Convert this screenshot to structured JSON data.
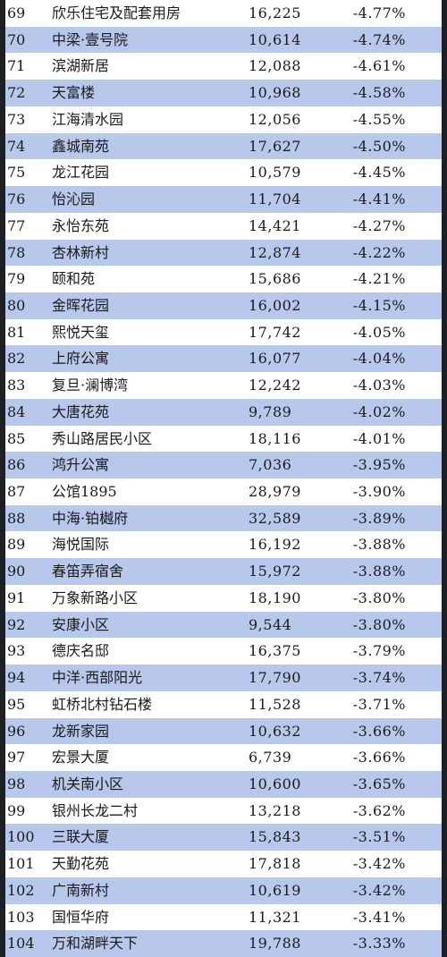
{
  "rows": [
    {
      "rank": "69",
      "name": "欣乐住宅及配套用房",
      "price": "16,225",
      "change": "-4.77%"
    },
    {
      "rank": "70",
      "name": "中梁·壹号院",
      "price": "10,614",
      "change": "-4.74%"
    },
    {
      "rank": "71",
      "name": "滨湖新居",
      "price": "12,088",
      "change": "-4.61%"
    },
    {
      "rank": "72",
      "name": "天富楼",
      "price": "10,968",
      "change": "-4.58%"
    },
    {
      "rank": "73",
      "name": "江海清水园",
      "price": "12,056",
      "change": "-4.55%"
    },
    {
      "rank": "74",
      "name": "鑫城南苑",
      "price": "17,627",
      "change": "-4.50%"
    },
    {
      "rank": "75",
      "name": "龙江花园",
      "price": "10,579",
      "change": "-4.45%"
    },
    {
      "rank": "76",
      "name": "怡沁园",
      "price": "11,704",
      "change": "-4.41%"
    },
    {
      "rank": "77",
      "name": "永怡东苑",
      "price": "14,421",
      "change": "-4.27%"
    },
    {
      "rank": "78",
      "name": "杏林新村",
      "price": "12,874",
      "change": "-4.22%"
    },
    {
      "rank": "79",
      "name": "颐和苑",
      "price": "15,686",
      "change": "-4.21%"
    },
    {
      "rank": "80",
      "name": "金晖花园",
      "price": "16,002",
      "change": "-4.15%"
    },
    {
      "rank": "81",
      "name": "熙悦天玺",
      "price": "17,742",
      "change": "-4.05%"
    },
    {
      "rank": "82",
      "name": "上府公寓",
      "price": "16,077",
      "change": "-4.04%"
    },
    {
      "rank": "83",
      "name": "复旦·澜博湾",
      "price": "12,242",
      "change": "-4.03%"
    },
    {
      "rank": "84",
      "name": "大唐花苑",
      "price": "9,789",
      "change": "-4.02%"
    },
    {
      "rank": "85",
      "name": "秀山路居民小区",
      "price": "18,116",
      "change": "-4.01%"
    },
    {
      "rank": "86",
      "name": "鸿升公寓",
      "price": "7,036",
      "change": "-3.95%"
    },
    {
      "rank": "87",
      "name": "公馆1895",
      "price": "28,979",
      "change": "-3.90%"
    },
    {
      "rank": "88",
      "name": "中海·铂樾府",
      "price": "32,589",
      "change": "-3.89%"
    },
    {
      "rank": "89",
      "name": "海悦国际",
      "price": "16,192",
      "change": "-3.88%"
    },
    {
      "rank": "90",
      "name": "春笛弄宿舍",
      "price": "15,972",
      "change": "-3.88%"
    },
    {
      "rank": "91",
      "name": "万象新路小区",
      "price": "18,190",
      "change": "-3.80%"
    },
    {
      "rank": "92",
      "name": "安康小区",
      "price": "9,544",
      "change": "-3.80%"
    },
    {
      "rank": "93",
      "name": "德庆名邸",
      "price": "16,375",
      "change": "-3.79%"
    },
    {
      "rank": "94",
      "name": "中洋·西部阳光",
      "price": "17,790",
      "change": "-3.74%"
    },
    {
      "rank": "95",
      "name": "虹桥北村钻石楼",
      "price": "11,528",
      "change": "-3.71%"
    },
    {
      "rank": "96",
      "name": "龙新家园",
      "price": "10,632",
      "change": "-3.66%"
    },
    {
      "rank": "97",
      "name": "宏景大厦",
      "price": "6,739",
      "change": "-3.66%"
    },
    {
      "rank": "98",
      "name": "机关南小区",
      "price": "10,600",
      "change": "-3.65%"
    },
    {
      "rank": "99",
      "name": "银州长龙二村",
      "price": "13,218",
      "change": "-3.62%"
    },
    {
      "rank": "100",
      "name": "三联大厦",
      "price": "15,843",
      "change": "-3.51%"
    },
    {
      "rank": "101",
      "name": "天勤花苑",
      "price": "17,818",
      "change": "-3.42%"
    },
    {
      "rank": "102",
      "name": "广南新村",
      "price": "10,619",
      "change": "-3.42%"
    },
    {
      "rank": "103",
      "name": "国恒华府",
      "price": "11,321",
      "change": "-3.41%"
    },
    {
      "rank": "104",
      "name": "万和湖畔天下",
      "price": "19,788",
      "change": "-3.33%"
    }
  ],
  "colors": {
    "stripe": "#b8c7ec",
    "plain": "#ffffff",
    "text": "#1a1a1a"
  }
}
